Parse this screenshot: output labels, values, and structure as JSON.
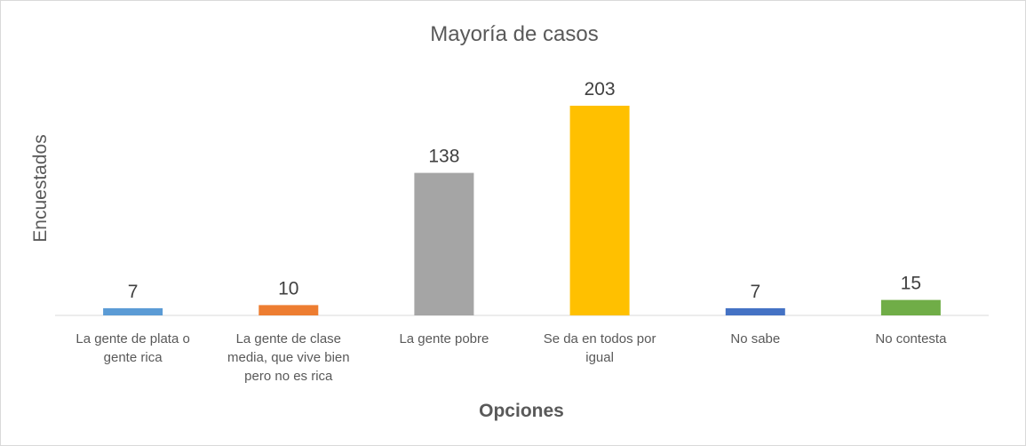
{
  "chart_data": {
    "type": "bar",
    "title": "Mayoría de casos",
    "xlabel": "Opciones",
    "ylabel": "Encuestados",
    "categories": [
      [
        "La gente de plata o",
        "gente rica"
      ],
      [
        "La gente de clase",
        "media, que vive bien",
        "pero no es rica"
      ],
      [
        "La gente pobre"
      ],
      [
        "Se da en todos por",
        "igual"
      ],
      [
        "No sabe"
      ],
      [
        "No contesta"
      ]
    ],
    "values": [
      7,
      10,
      138,
      203,
      7,
      15
    ],
    "colors": [
      "#5b9bd5",
      "#ed7d31",
      "#a5a5a5",
      "#ffc000",
      "#4472c4",
      "#70ad47"
    ],
    "ylim": [
      0,
      203
    ],
    "grid": false,
    "legend": "none",
    "data_labels": true
  }
}
